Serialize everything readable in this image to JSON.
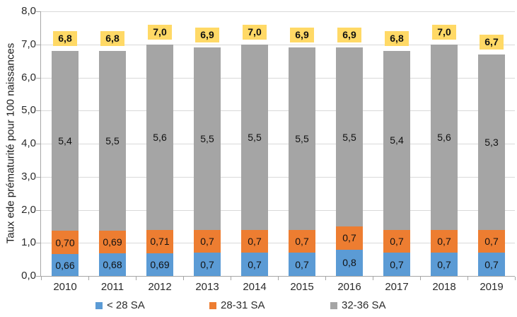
{
  "chart_data": {
    "type": "bar",
    "stacked": true,
    "title": "",
    "ylabel": "Taux ede prématurité pour 100 naissances",
    "xlabel": "",
    "ylim": [
      0,
      8
    ],
    "ytick_step": 1,
    "ytick_labels": [
      "0,0",
      "1,0",
      "2,0",
      "3,0",
      "4,0",
      "5,0",
      "6,0",
      "7,0",
      "8,0"
    ],
    "grid": true,
    "legend_position": "bottom",
    "categories": [
      "2010",
      "2011",
      "2012",
      "2013",
      "2014",
      "2015",
      "2016",
      "2017",
      "2018",
      "2019"
    ],
    "series": [
      {
        "name": "< 28 SA",
        "color": "#5B9BD5",
        "values": [
          0.66,
          0.68,
          0.69,
          0.7,
          0.7,
          0.7,
          0.8,
          0.7,
          0.7,
          0.7
        ],
        "labels": [
          "0,66",
          "0,68",
          "0,69",
          "0,7",
          "0,7",
          "0,7",
          "0,8",
          "0,7",
          "0,7",
          "0,7"
        ]
      },
      {
        "name": "28-31 SA",
        "color": "#ED7D31",
        "values": [
          0.7,
          0.69,
          0.71,
          0.7,
          0.7,
          0.7,
          0.7,
          0.7,
          0.7,
          0.7
        ],
        "labels": [
          "0,70",
          "0,69",
          "0,71",
          "0,7",
          "0,7",
          "0,7",
          "0,7",
          "0,7",
          "0,7",
          "0,7"
        ]
      },
      {
        "name": "32-36 SA",
        "color": "#A5A5A5",
        "values": [
          5.4,
          5.5,
          5.6,
          5.5,
          5.5,
          5.5,
          5.5,
          5.4,
          5.6,
          5.3
        ],
        "labels": [
          "5,4",
          "5,5",
          "5,6",
          "5,5",
          "5,5",
          "5,5",
          "5,5",
          "5,4",
          "5,6",
          "5,3"
        ]
      }
    ],
    "totals": {
      "values": [
        6.8,
        6.8,
        7.0,
        6.9,
        7.0,
        6.9,
        6.9,
        6.8,
        7.0,
        6.7
      ],
      "labels": [
        "6,8",
        "6,8",
        "7,0",
        "6,9",
        "7,0",
        "6,9",
        "6,9",
        "6,8",
        "7,0",
        "6,7"
      ],
      "box_color": "#FFD966"
    }
  },
  "colors": {
    "grid": "#D9D9D9",
    "axis": "#A6A6A6",
    "tick_text": "#2B2B2B",
    "label_text": "#111111"
  }
}
